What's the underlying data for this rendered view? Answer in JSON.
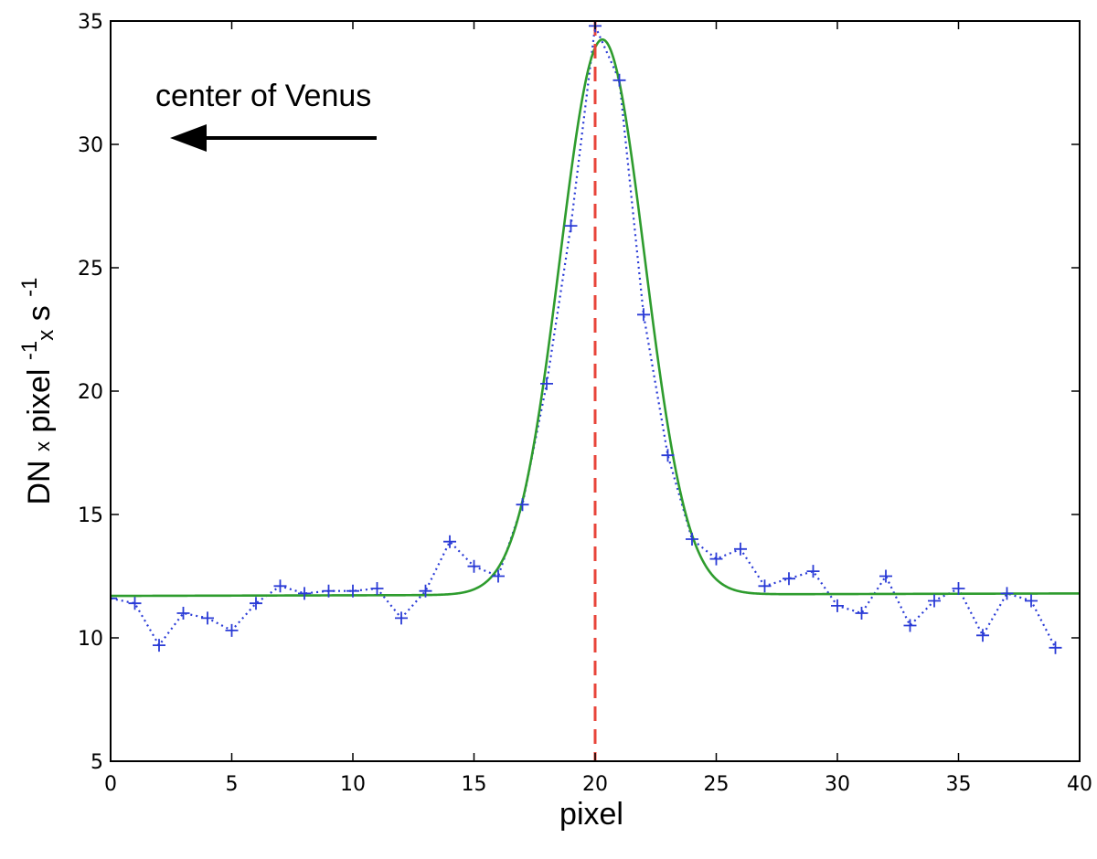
{
  "chart_data": {
    "type": "line",
    "title": "",
    "xlabel": "pixel",
    "ylabel": {
      "base": "DN",
      "x1": "x",
      "mid": "pixel",
      "exp1": "-1",
      "x2": "x",
      "unit": "s",
      "exp2": "-1"
    },
    "xlim": [
      0,
      40
    ],
    "ylim": [
      5,
      35
    ],
    "xticks": [
      0,
      5,
      10,
      15,
      20,
      25,
      30,
      35,
      40
    ],
    "yticks": [
      5,
      10,
      15,
      20,
      25,
      30,
      35
    ],
    "grid": false,
    "legend": "none",
    "annotation": {
      "text": "center of Venus",
      "arrow_direction": "left"
    },
    "vline": {
      "x": 20,
      "color": "#e8443a",
      "style": "dashed"
    },
    "series": [
      {
        "kind": "measured",
        "color": "#2a3bd6",
        "marker": "+",
        "line_style": "dotted",
        "x": [
          0,
          1,
          2,
          3,
          4,
          5,
          6,
          7,
          8,
          9,
          10,
          11,
          12,
          13,
          14,
          15,
          16,
          17,
          18,
          19,
          20,
          21,
          22,
          23,
          24,
          25,
          26,
          27,
          28,
          29,
          30,
          31,
          32,
          33,
          34,
          35,
          36,
          37,
          38,
          39
        ],
        "y": [
          11.6,
          11.4,
          9.7,
          11.0,
          10.8,
          10.3,
          11.4,
          12.1,
          11.8,
          11.9,
          11.9,
          12.0,
          10.8,
          11.9,
          13.9,
          12.9,
          12.5,
          15.4,
          20.3,
          26.7,
          34.8,
          32.6,
          23.1,
          17.4,
          14.0,
          13.2,
          13.6,
          12.1,
          12.4,
          12.7,
          11.3,
          11.0,
          12.5,
          10.5,
          11.5,
          12.0,
          10.1,
          11.8,
          11.5,
          9.6
        ]
      },
      {
        "kind": "gaussian-fit",
        "color": "#2e9c2e",
        "line_style": "solid",
        "x_start": 0,
        "x_end": 40,
        "baseline_left": 11.7,
        "baseline_right": 11.8,
        "amplitude": 22.5,
        "center": 20.3,
        "sigma": 1.75
      }
    ]
  }
}
